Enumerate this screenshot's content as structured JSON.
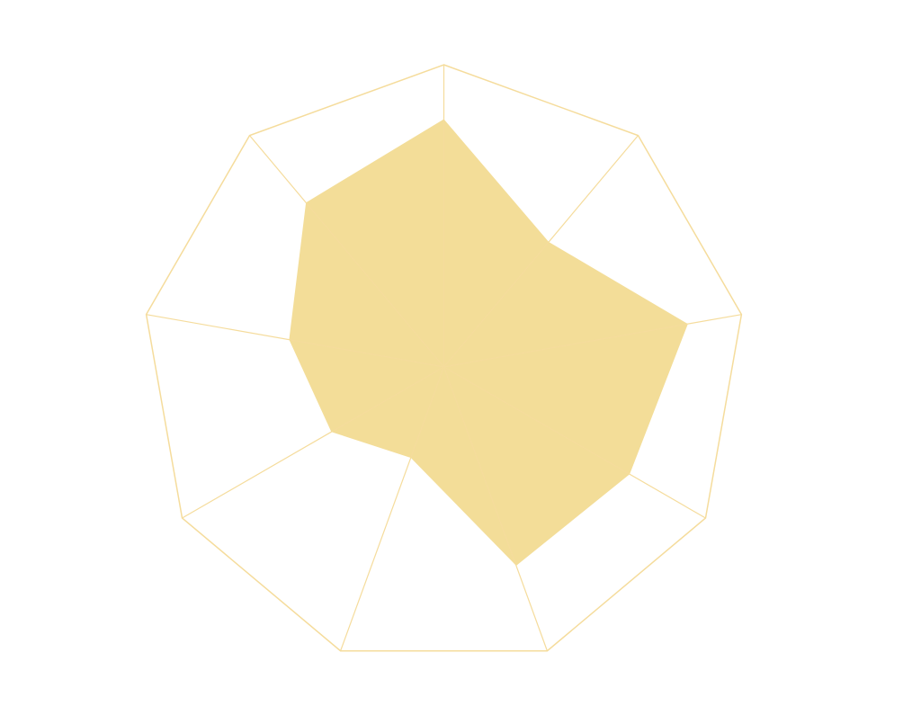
{
  "chart_data": {
    "type": "radar",
    "categories": [
      null,
      null,
      null,
      null,
      null,
      null,
      null,
      null,
      null
    ],
    "values": [
      82,
      54,
      82,
      71,
      70,
      32,
      43,
      52,
      71
    ],
    "color": "#f3dd98",
    "grid_color": "#f5dc9c",
    "rlim": [
      0,
      100
    ],
    "grid": true
  }
}
